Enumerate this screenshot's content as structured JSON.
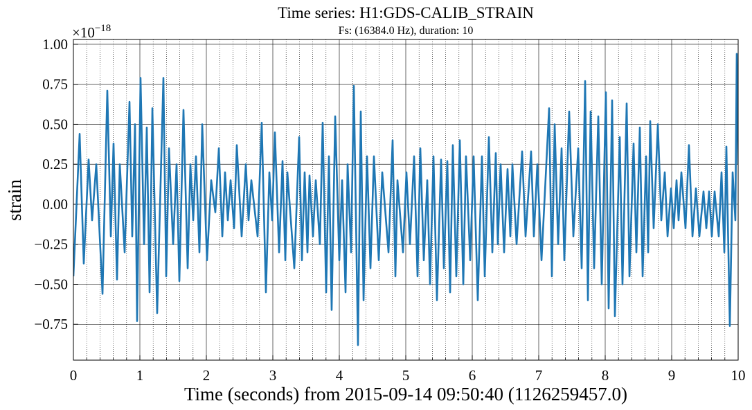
{
  "chart_data": {
    "type": "line",
    "title": "Time series: H1:GDS-CALIB_STRAIN",
    "subtitle": "Fs: (16384.0 Hz), duration: 10",
    "x_label": "Time (seconds) from 2015-09-14 09:50:40 (1126259457.0)",
    "y_label": "strain",
    "y_offset": {
      "base": "×10",
      "exponent": "−18"
    },
    "xlim": [
      0,
      10
    ],
    "ylim": [
      -0.974,
      1.03
    ],
    "xticks": [
      0,
      1,
      2,
      3,
      4,
      5,
      6,
      7,
      8,
      9,
      10
    ],
    "xminorticks": [
      0.2,
      0.4,
      0.6,
      0.8,
      1.2,
      1.4,
      1.6,
      1.8,
      2.2,
      2.4,
      2.6,
      2.8,
      3.2,
      3.4,
      3.6,
      3.8,
      4.2,
      4.4,
      4.6,
      4.8,
      5.2,
      5.4,
      5.6,
      5.8,
      6.2,
      6.4,
      6.6,
      6.8,
      7.2,
      7.4,
      7.6,
      7.8,
      8.2,
      8.4,
      8.6,
      8.8,
      9.2,
      9.4,
      9.6,
      9.8
    ],
    "yticks": [
      {
        "value": -0.75,
        "label": "−0.75"
      },
      {
        "value": -0.5,
        "label": "−0.50"
      },
      {
        "value": -0.25,
        "label": "−0.25"
      },
      {
        "value": 0,
        "label": "0.00"
      },
      0.25,
      {
        "value": 0.5,
        "label": "0.50"
      },
      0.75,
      {
        "value": 1,
        "label": "1.00"
      }
    ],
    "grid": true,
    "x": [
      0,
      0.094,
      0.156,
      0.229,
      0.281,
      0.344,
      0.438,
      0.51,
      0.563,
      0.604,
      0.656,
      0.698,
      0.771,
      0.844,
      0.885,
      0.927,
      0.958,
      1.01,
      1.063,
      1.104,
      1.146,
      1.188,
      1.26,
      1.354,
      1.396,
      1.438,
      1.5,
      1.552,
      1.594,
      1.656,
      1.719,
      1.76,
      1.802,
      1.844,
      1.896,
      1.938,
      2.01,
      2.073,
      2.135,
      2.188,
      2.24,
      2.281,
      2.323,
      2.365,
      2.417,
      2.458,
      2.531,
      2.594,
      2.635,
      2.677,
      2.771,
      2.833,
      2.896,
      2.948,
      2.99,
      3.031,
      3.094,
      3.146,
      3.188,
      3.219,
      3.323,
      3.396,
      3.438,
      3.479,
      3.521,
      3.552,
      3.604,
      3.646,
      3.708,
      3.75,
      3.802,
      3.844,
      3.885,
      3.938,
      4.0,
      4.042,
      4.094,
      4.125,
      4.177,
      4.219,
      4.281,
      4.323,
      4.365,
      4.417,
      4.469,
      4.521,
      4.594,
      4.646,
      4.74,
      4.802,
      4.844,
      4.875,
      4.958,
      5.01,
      5.063,
      5.125,
      5.177,
      5.219,
      5.271,
      5.323,
      5.365,
      5.417,
      5.469,
      5.531,
      5.573,
      5.625,
      5.667,
      5.708,
      5.76,
      5.813,
      5.865,
      5.906,
      5.969,
      6.021,
      6.083,
      6.146,
      6.188,
      6.25,
      6.302,
      6.354,
      6.385,
      6.427,
      6.479,
      6.531,
      6.573,
      6.604,
      6.667,
      6.75,
      6.802,
      6.885,
      6.927,
      6.979,
      7.042,
      7.156,
      7.198,
      7.24,
      7.292,
      7.344,
      7.385,
      7.458,
      7.521,
      7.594,
      7.646,
      7.698,
      7.74,
      7.781,
      7.833,
      7.896,
      7.948,
      8.01,
      8.052,
      8.104,
      8.146,
      8.219,
      8.26,
      8.323,
      8.365,
      8.427,
      8.469,
      8.521,
      8.563,
      8.615,
      8.646,
      8.677,
      8.729,
      8.792,
      8.844,
      8.896,
      8.938,
      8.99,
      9.031,
      9.073,
      9.104,
      9.146,
      9.208,
      9.26,
      9.313,
      9.365,
      9.417,
      9.479,
      9.521,
      9.563,
      9.604,
      9.646,
      9.708,
      9.75,
      9.792,
      9.823,
      9.875,
      9.917,
      9.958,
      9.979,
      10.0
    ],
    "series": [
      {
        "color": "#1f77b4",
        "values": [
          -0.45,
          0.44,
          -0.37,
          0.28,
          -0.1,
          0.25,
          -0.56,
          0.71,
          -0.2,
          0.38,
          -0.47,
          0.25,
          -0.3,
          0.64,
          -0.2,
          0.5,
          -0.73,
          0.79,
          -0.25,
          0.48,
          -0.55,
          0.6,
          -0.68,
          0.79,
          -0.45,
          0.35,
          -0.25,
          0.25,
          -0.48,
          0.59,
          -0.4,
          0.25,
          -0.1,
          0.3,
          -0.3,
          0.5,
          -0.35,
          0.15,
          -0.05,
          0.35,
          -0.2,
          0.2,
          -0.1,
          0.15,
          -0.15,
          0.37,
          -0.2,
          0.25,
          -0.1,
          0.15,
          -0.2,
          0.51,
          -0.55,
          0.2,
          -0.1,
          0.45,
          -0.3,
          0.27,
          -0.35,
          0.2,
          -0.4,
          0.42,
          -0.35,
          0.2,
          -0.3,
          0.18,
          -0.2,
          0.15,
          -0.25,
          0.51,
          -0.55,
          0.3,
          -0.66,
          0.55,
          -0.35,
          0.15,
          -0.55,
          0.25,
          -0.3,
          0.74,
          -0.88,
          0.58,
          -0.6,
          0.3,
          -0.4,
          0.3,
          -0.35,
          0.2,
          -0.3,
          0.4,
          -0.45,
          0.15,
          -0.3,
          0.2,
          -0.25,
          0.3,
          -0.45,
          0.35,
          -0.35,
          0.15,
          -0.5,
          0.3,
          -0.6,
          0.28,
          -0.4,
          0.27,
          -0.55,
          0.37,
          -0.45,
          0.4,
          -0.5,
          0.3,
          -0.35,
          0.3,
          -0.6,
          0.3,
          -0.45,
          0.42,
          -0.3,
          0.32,
          -0.25,
          0.25,
          -0.3,
          0.22,
          -0.2,
          0.25,
          -0.25,
          0.33,
          -0.2,
          0.33,
          -0.2,
          0.25,
          -0.35,
          0.6,
          -0.45,
          0.5,
          -0.25,
          0.35,
          -0.35,
          0.58,
          -0.2,
          0.35,
          -0.4,
          0.77,
          -0.6,
          0.58,
          -0.4,
          0.55,
          -0.5,
          0.7,
          -0.65,
          0.65,
          -0.7,
          0.42,
          -0.5,
          0.63,
          -0.45,
          0.38,
          -0.3,
          0.48,
          -0.45,
          0.3,
          -0.3,
          0.52,
          -0.15,
          0.5,
          -0.1,
          0.2,
          -0.2,
          0.1,
          -0.15,
          0.15,
          -0.1,
          0.2,
          -0.15,
          0.37,
          -0.2,
          0.1,
          -0.2,
          0.08,
          -0.15,
          0.08,
          -0.2,
          0.08,
          -0.2,
          0.2,
          -0.3,
          0.36,
          -0.76,
          0.2,
          -0.1,
          0.94,
          0.25
        ]
      }
    ]
  }
}
